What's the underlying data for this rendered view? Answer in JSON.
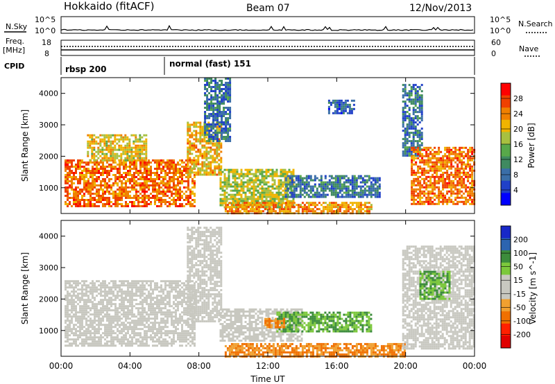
{
  "header": {
    "station": "Hokkaido (fitACF)",
    "beam": "Beam 07",
    "date": "12/Nov/2013"
  },
  "side_labels": {
    "nsky": "N.Sky",
    "freq_line1": "Freq.",
    "freq_line2": "[MHz]",
    "cpid": "CPID",
    "nsearch": "N.Search",
    "nave": "Nave"
  },
  "strip_ticks": {
    "noise_left": [
      "10^5",
      "10^0"
    ],
    "noise_right": [
      "10^5",
      "10^0"
    ],
    "freq_left": [
      "18",
      "8"
    ],
    "freq_right": [
      "60",
      "0"
    ]
  },
  "cpid_labels": [
    {
      "text": "rbsp 200",
      "start_hour": 0
    },
    {
      "text": "normal (fast) 151",
      "start_hour": 6
    }
  ],
  "colors": {
    "power_scale": [
      "#0000ff",
      "#2040c8",
      "#3a6ea8",
      "#3f8a60",
      "#58a84a",
      "#a8c040",
      "#f0b400",
      "#f08000",
      "#f04000",
      "#ff0000"
    ],
    "velocity_scale": [
      "#1828c8",
      "#2c64b0",
      "#3c8c3c",
      "#7cc83c",
      "#c8c8c0",
      "#c8c8c0",
      "#f0a030",
      "#f07000",
      "#ff2000",
      "#e00000"
    ]
  },
  "chart_data": [
    {
      "type": "heatmap",
      "name": "power",
      "ylabel": "Slant Range [km]",
      "ylim": [
        180,
        4500
      ],
      "xlim": [
        0,
        24
      ],
      "yticks": [
        "1000",
        "2000",
        "3000",
        "4000"
      ],
      "colorbar_label": "Power [dB]",
      "colorbar_ticks": [
        "4",
        "8",
        "12",
        "16",
        "20",
        "24",
        "28"
      ],
      "regions": [
        {
          "x": [
            0.2,
            7.8
          ],
          "y": [
            400,
            1900
          ],
          "value": 26
        },
        {
          "x": [
            1.5,
            5.0
          ],
          "y": [
            1900,
            2700
          ],
          "value": 20
        },
        {
          "x": [
            7.3,
            9.3
          ],
          "y": [
            1400,
            3100
          ],
          "value": 22
        },
        {
          "x": [
            8.3,
            9.8
          ],
          "y": [
            2500,
            4500
          ],
          "value": 8
        },
        {
          "x": [
            9.2,
            13.5
          ],
          "y": [
            400,
            1600
          ],
          "value": 18
        },
        {
          "x": [
            13.0,
            18.5
          ],
          "y": [
            700,
            1400
          ],
          "value": 8
        },
        {
          "x": [
            9.5,
            18.0
          ],
          "y": [
            200,
            550
          ],
          "value": 24
        },
        {
          "x": [
            15.5,
            17.0
          ],
          "y": [
            3400,
            3800
          ],
          "value": 6
        },
        {
          "x": [
            19.8,
            21.0
          ],
          "y": [
            2000,
            4300
          ],
          "value": 8
        },
        {
          "x": [
            20.3,
            24.0
          ],
          "y": [
            450,
            2300
          ],
          "value": 26
        }
      ]
    },
    {
      "type": "heatmap",
      "name": "velocity",
      "xlabel": "Time UT",
      "ylabel": "Slant Range [km]",
      "ylim": [
        180,
        4500
      ],
      "xlim": [
        0,
        24
      ],
      "xticks": [
        "00:00",
        "04:00",
        "08:00",
        "12:00",
        "16:00",
        "20:00",
        "00:00"
      ],
      "yticks": [
        "1000",
        "2000",
        "3000",
        "4000"
      ],
      "colorbar_label": "Velocity [m s^-1]",
      "colorbar_ticks": [
        "200",
        "100",
        "50",
        "15",
        "-15",
        "-50",
        "-100",
        "-200"
      ],
      "regions": [
        {
          "x": [
            0.2,
            7.8
          ],
          "y": [
            500,
            2600
          ],
          "value": 0
        },
        {
          "x": [
            7.3,
            9.3
          ],
          "y": [
            1300,
            4300
          ],
          "value": 0
        },
        {
          "x": [
            9.2,
            14.0
          ],
          "y": [
            700,
            1700
          ],
          "value": 0
        },
        {
          "x": [
            12.5,
            18.0
          ],
          "y": [
            1000,
            1600
          ],
          "value": 50
        },
        {
          "x": [
            9.5,
            20.0
          ],
          "y": [
            200,
            600
          ],
          "value": -50
        },
        {
          "x": [
            11.8,
            13.0
          ],
          "y": [
            1100,
            1400
          ],
          "value": -50
        },
        {
          "x": [
            19.8,
            24.0
          ],
          "y": [
            400,
            3700
          ],
          "value": 0
        },
        {
          "x": [
            20.8,
            22.5
          ],
          "y": [
            2000,
            2900
          ],
          "value": 50
        }
      ]
    }
  ]
}
